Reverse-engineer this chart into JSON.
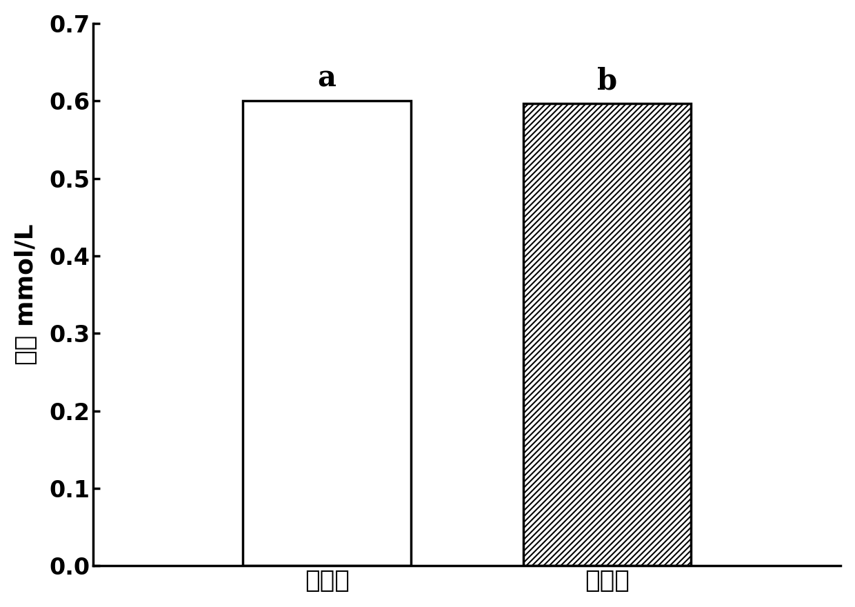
{
  "categories": [
    "理论值",
    "测定值"
  ],
  "values": [
    0.6,
    0.597
  ],
  "labels": [
    "a",
    "b"
  ],
  "ylabel": "浓度 mmol/L",
  "ylim": [
    0.0,
    0.7
  ],
  "yticks": [
    0.0,
    0.1,
    0.2,
    0.3,
    0.4,
    0.5,
    0.6,
    0.7
  ],
  "bar_width": 0.18,
  "bar_positions": [
    0.35,
    0.65
  ],
  "face_colors": [
    "white",
    "white"
  ],
  "hatch_patterns": [
    "",
    "////"
  ],
  "edge_color": "#000000",
  "category_fontsize": 26,
  "tick_fontsize": 24,
  "ylabel_fontsize": 26,
  "annotation_fontsize": 30,
  "background_color": "#ffffff",
  "linewidth": 2.5,
  "hatch_linewidth": 1.5
}
